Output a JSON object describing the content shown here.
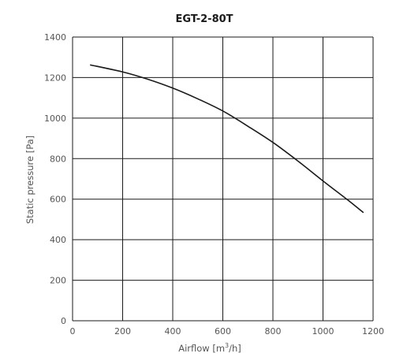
{
  "chart_data": {
    "type": "line",
    "title": "EGT-2-80T",
    "xlabel_main": "Airflow [m",
    "xlabel_sup": "3",
    "xlabel_tail": "/h]",
    "ylabel": "Static pressure [Pa]",
    "xlim": [
      0,
      1200
    ],
    "ylim": [
      0,
      1400
    ],
    "x_ticks": [
      0,
      200,
      400,
      600,
      800,
      1000,
      1200
    ],
    "y_ticks": [
      0,
      200,
      400,
      600,
      800,
      1000,
      1200,
      1400
    ],
    "grid": true,
    "line_color": "#1a1a1a",
    "grid_color": "#1a1a1a",
    "series": [
      {
        "x": [
          72,
          200,
          300,
          400,
          500,
          600,
          700,
          800,
          900,
          1000,
          1100,
          1160
        ],
        "y": [
          1262,
          1228,
          1192,
          1148,
          1095,
          1035,
          960,
          880,
          788,
          690,
          595,
          535
        ]
      }
    ]
  }
}
